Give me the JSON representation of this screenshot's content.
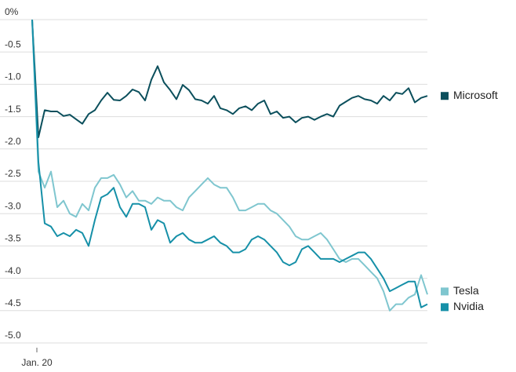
{
  "chart_data": {
    "type": "line",
    "categories": [
      "Jan. 20",
      null,
      null,
      null,
      null,
      null,
      null,
      null,
      null,
      null,
      null,
      null,
      null,
      null,
      null,
      null,
      null,
      null,
      null,
      null,
      null,
      null,
      null,
      null,
      null,
      null,
      null,
      null,
      null,
      null,
      null,
      null,
      null,
      null,
      null,
      null,
      null,
      null,
      null,
      null,
      null,
      null,
      null,
      null,
      null,
      null,
      null,
      null,
      null,
      null,
      null,
      null,
      null,
      null,
      null,
      null,
      null,
      null,
      null,
      null,
      null,
      null,
      null,
      null
    ],
    "series": [
      {
        "name": "Microsoft",
        "color": "#0b4f5c",
        "values": [
          0,
          -1.82,
          -1.4,
          -1.42,
          -1.42,
          -1.49,
          -1.47,
          -1.54,
          -1.61,
          -1.46,
          -1.4,
          -1.25,
          -1.13,
          -1.24,
          -1.25,
          -1.18,
          -1.08,
          -1.12,
          -1.25,
          -0.93,
          -0.72,
          -0.97,
          -1.09,
          -1.23,
          -1.01,
          -1.09,
          -1.23,
          -1.25,
          -1.3,
          -1.18,
          -1.37,
          -1.4,
          -1.46,
          -1.37,
          -1.34,
          -1.4,
          -1.3,
          -1.25,
          -1.46,
          -1.42,
          -1.52,
          -1.5,
          -1.59,
          -1.52,
          -1.5,
          -1.55,
          -1.5,
          -1.46,
          -1.5,
          -1.33,
          -1.27,
          -1.21,
          -1.18,
          -1.23,
          -1.25,
          -1.3,
          -1.18,
          -1.25,
          -1.13,
          -1.15,
          -1.06,
          -1.28,
          -1.21,
          -1.18
        ]
      },
      {
        "name": "Tesla",
        "color": "#7fc6cf",
        "values": [
          0,
          -2.35,
          -2.6,
          -2.35,
          -2.9,
          -2.8,
          -3.0,
          -3.05,
          -2.85,
          -2.95,
          -2.6,
          -2.45,
          -2.45,
          -2.4,
          -2.55,
          -2.75,
          -2.65,
          -2.8,
          -2.8,
          -2.85,
          -2.75,
          -2.8,
          -2.8,
          -2.9,
          -2.95,
          -2.75,
          -2.65,
          -2.55,
          -2.45,
          -2.55,
          -2.6,
          -2.6,
          -2.75,
          -2.95,
          -2.95,
          -2.9,
          -2.85,
          -2.85,
          -2.95,
          -3.0,
          -3.1,
          -3.2,
          -3.35,
          -3.4,
          -3.4,
          -3.35,
          -3.3,
          -3.4,
          -3.55,
          -3.7,
          -3.75,
          -3.7,
          -3.7,
          -3.8,
          -3.9,
          -4.0,
          -4.2,
          -4.5,
          -4.4,
          -4.4,
          -4.3,
          -4.25,
          -3.95,
          -4.25
        ]
      },
      {
        "name": "Nvidia",
        "color": "#1690a8",
        "values": [
          0,
          -2.2,
          -3.15,
          -3.2,
          -3.35,
          -3.3,
          -3.35,
          -3.25,
          -3.3,
          -3.5,
          -3.1,
          -2.75,
          -2.7,
          -2.6,
          -2.9,
          -3.05,
          -2.85,
          -2.85,
          -2.9,
          -3.25,
          -3.1,
          -3.15,
          -3.45,
          -3.35,
          -3.3,
          -3.4,
          -3.45,
          -3.45,
          -3.4,
          -3.35,
          -3.45,
          -3.5,
          -3.6,
          -3.6,
          -3.55,
          -3.4,
          -3.35,
          -3.4,
          -3.5,
          -3.6,
          -3.75,
          -3.8,
          -3.75,
          -3.55,
          -3.5,
          -3.6,
          -3.7,
          -3.7,
          -3.7,
          -3.75,
          -3.7,
          -3.65,
          -3.6,
          -3.6,
          -3.7,
          -3.85,
          -4.0,
          -4.2,
          -4.15,
          -4.1,
          -4.05,
          -4.05,
          -4.45,
          -4.4
        ]
      }
    ],
    "ylim": [
      -5.0,
      0
    ],
    "yticks": [
      {
        "value": 0,
        "label": "0%"
      },
      -0.5,
      {
        "value": -1.0,
        "label": "-1.0"
      },
      -1.5,
      {
        "value": -2.0,
        "label": "-2.0"
      },
      -2.5,
      {
        "value": -3.0,
        "label": "-3.0"
      },
      -3.5,
      {
        "value": -4.0,
        "label": "-4.0"
      },
      -4.5,
      {
        "value": -5.0,
        "label": "-5.0"
      }
    ],
    "grid": true,
    "legend": "right"
  }
}
